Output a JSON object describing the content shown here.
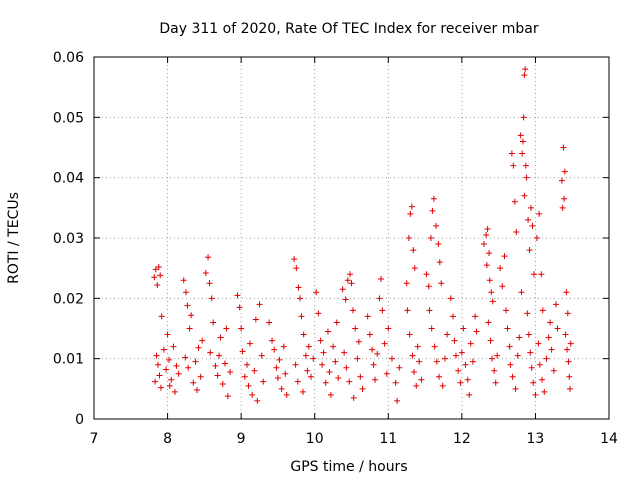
{
  "chart_data": {
    "type": "scatter",
    "title": "Day 311 of 2020, Rate Of TEC Index for receiver mbar",
    "xlabel": "GPS time / hours",
    "ylabel": "ROTI / TECUs",
    "xlim": [
      7,
      14
    ],
    "ylim": [
      0,
      0.06
    ],
    "xticks": [
      "7",
      "8",
      "9",
      "10",
      "11",
      "12",
      "13",
      "14"
    ],
    "yticks": [
      "0",
      "0.01",
      "0.02",
      "0.03",
      "0.04",
      "0.05",
      "0.06"
    ],
    "grid": true,
    "legend": "none",
    "marker": "plus",
    "color": "#e00000",
    "series": [
      {
        "values": [
          [
            7.82,
            0.0235
          ],
          [
            7.84,
            0.0248
          ],
          [
            7.86,
            0.0222
          ],
          [
            7.88,
            0.0252
          ],
          [
            7.9,
            0.0238
          ],
          [
            7.92,
            0.017
          ],
          [
            7.85,
            0.0105
          ],
          [
            7.87,
            0.009
          ],
          [
            7.83,
            0.0062
          ],
          [
            7.89,
            0.0072
          ],
          [
            7.91,
            0.0052
          ],
          [
            7.95,
            0.0115
          ],
          [
            7.98,
            0.0082
          ],
          [
            8.02,
            0.0098
          ],
          [
            8.05,
            0.0065
          ],
          [
            8.08,
            0.012
          ],
          [
            8.1,
            0.0045
          ],
          [
            8.12,
            0.0088
          ],
          [
            8.15,
            0.0075
          ],
          [
            8.0,
            0.014
          ],
          [
            8.03,
            0.0055
          ],
          [
            8.22,
            0.023
          ],
          [
            8.25,
            0.021
          ],
          [
            8.27,
            0.0188
          ],
          [
            8.3,
            0.015
          ],
          [
            8.32,
            0.0172
          ],
          [
            8.24,
            0.0102
          ],
          [
            8.28,
            0.0085
          ],
          [
            8.35,
            0.006
          ],
          [
            8.38,
            0.0095
          ],
          [
            8.42,
            0.0118
          ],
          [
            8.45,
            0.007
          ],
          [
            8.4,
            0.0048
          ],
          [
            8.47,
            0.013
          ],
          [
            8.52,
            0.0242
          ],
          [
            8.55,
            0.0268
          ],
          [
            8.57,
            0.0225
          ],
          [
            8.6,
            0.02
          ],
          [
            8.62,
            0.016
          ],
          [
            8.58,
            0.011
          ],
          [
            8.65,
            0.0088
          ],
          [
            8.68,
            0.0072
          ],
          [
            8.7,
            0.0105
          ],
          [
            8.72,
            0.0135
          ],
          [
            8.75,
            0.0058
          ],
          [
            8.78,
            0.0092
          ],
          [
            8.8,
            0.015
          ],
          [
            8.82,
            0.0038
          ],
          [
            8.85,
            0.0078
          ],
          [
            8.95,
            0.0205
          ],
          [
            8.98,
            0.0185
          ],
          [
            9.0,
            0.015
          ],
          [
            9.02,
            0.0112
          ],
          [
            9.05,
            0.007
          ],
          [
            9.08,
            0.009
          ],
          [
            9.1,
            0.0055
          ],
          [
            9.12,
            0.0125
          ],
          [
            9.15,
            0.004
          ],
          [
            9.18,
            0.008
          ],
          [
            9.2,
            0.0165
          ],
          [
            9.25,
            0.019
          ],
          [
            9.28,
            0.0105
          ],
          [
            9.3,
            0.0062
          ],
          [
            9.22,
            0.003
          ],
          [
            9.38,
            0.016
          ],
          [
            9.42,
            0.013
          ],
          [
            9.45,
            0.0115
          ],
          [
            9.48,
            0.0085
          ],
          [
            9.5,
            0.0068
          ],
          [
            9.52,
            0.0098
          ],
          [
            9.55,
            0.005
          ],
          [
            9.58,
            0.012
          ],
          [
            9.6,
            0.0075
          ],
          [
            9.62,
            0.004
          ],
          [
            9.72,
            0.0265
          ],
          [
            9.75,
            0.025
          ],
          [
            9.78,
            0.0218
          ],
          [
            9.8,
            0.02
          ],
          [
            9.82,
            0.017
          ],
          [
            9.85,
            0.014
          ],
          [
            9.88,
            0.0105
          ],
          [
            9.9,
            0.008
          ],
          [
            9.74,
            0.009
          ],
          [
            9.77,
            0.0062
          ],
          [
            9.84,
            0.0045
          ],
          [
            9.92,
            0.012
          ],
          [
            9.95,
            0.007
          ],
          [
            9.98,
            0.01
          ],
          [
            10.02,
            0.021
          ],
          [
            10.05,
            0.0175
          ],
          [
            10.08,
            0.013
          ],
          [
            10.1,
            0.009
          ],
          [
            10.12,
            0.011
          ],
          [
            10.15,
            0.006
          ],
          [
            10.18,
            0.0145
          ],
          [
            10.2,
            0.0078
          ],
          [
            10.22,
            0.004
          ],
          [
            10.25,
            0.012
          ],
          [
            10.28,
            0.0095
          ],
          [
            10.3,
            0.016
          ],
          [
            10.32,
            0.0068
          ],
          [
            10.38,
            0.0215
          ],
          [
            10.42,
            0.0198
          ],
          [
            10.45,
            0.023
          ],
          [
            10.48,
            0.024
          ],
          [
            10.5,
            0.0225
          ],
          [
            10.52,
            0.018
          ],
          [
            10.55,
            0.015
          ],
          [
            10.4,
            0.011
          ],
          [
            10.43,
            0.0085
          ],
          [
            10.47,
            0.0062
          ],
          [
            10.53,
            0.0035
          ],
          [
            10.58,
            0.01
          ],
          [
            10.6,
            0.0128
          ],
          [
            10.62,
            0.007
          ],
          [
            10.65,
            0.005
          ],
          [
            10.72,
            0.017
          ],
          [
            10.75,
            0.014
          ],
          [
            10.78,
            0.0115
          ],
          [
            10.8,
            0.009
          ],
          [
            10.82,
            0.0065
          ],
          [
            10.85,
            0.0108
          ],
          [
            10.88,
            0.02
          ],
          [
            10.9,
            0.0232
          ],
          [
            10.92,
            0.018
          ],
          [
            10.95,
            0.0125
          ],
          [
            10.98,
            0.0075
          ],
          [
            11.0,
            0.015
          ],
          [
            11.05,
            0.01
          ],
          [
            11.1,
            0.006
          ],
          [
            11.12,
            0.003
          ],
          [
            11.15,
            0.0085
          ],
          [
            11.25,
            0.0225
          ],
          [
            11.28,
            0.03
          ],
          [
            11.3,
            0.034
          ],
          [
            11.32,
            0.0352
          ],
          [
            11.34,
            0.028
          ],
          [
            11.36,
            0.025
          ],
          [
            11.26,
            0.018
          ],
          [
            11.29,
            0.014
          ],
          [
            11.33,
            0.0105
          ],
          [
            11.35,
            0.0078
          ],
          [
            11.38,
            0.0055
          ],
          [
            11.4,
            0.012
          ],
          [
            11.42,
            0.0095
          ],
          [
            11.45,
            0.0065
          ],
          [
            11.52,
            0.024
          ],
          [
            11.55,
            0.022
          ],
          [
            11.58,
            0.03
          ],
          [
            11.6,
            0.0345
          ],
          [
            11.62,
            0.0365
          ],
          [
            11.65,
            0.032
          ],
          [
            11.68,
            0.029
          ],
          [
            11.7,
            0.026
          ],
          [
            11.72,
            0.0225
          ],
          [
            11.56,
            0.018
          ],
          [
            11.59,
            0.015
          ],
          [
            11.63,
            0.012
          ],
          [
            11.66,
            0.0095
          ],
          [
            11.69,
            0.007
          ],
          [
            11.74,
            0.0055
          ],
          [
            11.77,
            0.01
          ],
          [
            11.8,
            0.014
          ],
          [
            11.85,
            0.02
          ],
          [
            11.88,
            0.017
          ],
          [
            11.9,
            0.013
          ],
          [
            11.92,
            0.0105
          ],
          [
            11.95,
            0.008
          ],
          [
            11.98,
            0.006
          ],
          [
            12.0,
            0.011
          ],
          [
            12.02,
            0.015
          ],
          [
            12.05,
            0.009
          ],
          [
            12.08,
            0.0065
          ],
          [
            12.1,
            0.004
          ],
          [
            12.12,
            0.0125
          ],
          [
            12.15,
            0.0095
          ],
          [
            12.18,
            0.017
          ],
          [
            12.2,
            0.0145
          ],
          [
            12.3,
            0.029
          ],
          [
            12.33,
            0.0305
          ],
          [
            12.35,
            0.0315
          ],
          [
            12.37,
            0.0275
          ],
          [
            12.34,
            0.0255
          ],
          [
            12.38,
            0.023
          ],
          [
            12.4,
            0.021
          ],
          [
            12.42,
            0.0195
          ],
          [
            12.36,
            0.016
          ],
          [
            12.39,
            0.013
          ],
          [
            12.41,
            0.01
          ],
          [
            12.44,
            0.008
          ],
          [
            12.46,
            0.006
          ],
          [
            12.48,
            0.0105
          ],
          [
            12.52,
            0.025
          ],
          [
            12.55,
            0.022
          ],
          [
            12.58,
            0.027
          ],
          [
            12.6,
            0.018
          ],
          [
            12.62,
            0.015
          ],
          [
            12.65,
            0.012
          ],
          [
            12.68,
            0.044
          ],
          [
            12.7,
            0.042
          ],
          [
            12.72,
            0.036
          ],
          [
            12.74,
            0.031
          ],
          [
            12.66,
            0.009
          ],
          [
            12.69,
            0.007
          ],
          [
            12.73,
            0.005
          ],
          [
            12.76,
            0.0105
          ],
          [
            12.78,
            0.0135
          ],
          [
            12.8,
            0.047
          ],
          [
            12.82,
            0.044
          ],
          [
            12.84,
            0.05
          ],
          [
            12.85,
            0.057
          ],
          [
            12.86,
            0.058
          ],
          [
            12.83,
            0.046
          ],
          [
            12.87,
            0.042
          ],
          [
            12.88,
            0.04
          ],
          [
            12.9,
            0.033
          ],
          [
            12.92,
            0.028
          ],
          [
            12.85,
            0.037
          ],
          [
            12.94,
            0.035
          ],
          [
            12.96,
            0.032
          ],
          [
            12.98,
            0.024
          ],
          [
            12.81,
            0.021
          ],
          [
            12.89,
            0.0175
          ],
          [
            12.91,
            0.014
          ],
          [
            12.93,
            0.011
          ],
          [
            12.95,
            0.0085
          ],
          [
            12.97,
            0.006
          ],
          [
            13.0,
            0.004
          ],
          [
            13.02,
            0.03
          ],
          [
            13.05,
            0.034
          ],
          [
            13.08,
            0.024
          ],
          [
            13.1,
            0.018
          ],
          [
            13.04,
            0.0125
          ],
          [
            13.06,
            0.009
          ],
          [
            13.09,
            0.0065
          ],
          [
            13.12,
            0.0045
          ],
          [
            13.15,
            0.01
          ],
          [
            13.18,
            0.0135
          ],
          [
            13.2,
            0.016
          ],
          [
            13.22,
            0.0115
          ],
          [
            13.25,
            0.008
          ],
          [
            13.28,
            0.019
          ],
          [
            13.3,
            0.015
          ],
          [
            13.38,
            0.045
          ],
          [
            13.4,
            0.041
          ],
          [
            13.36,
            0.0395
          ],
          [
            13.39,
            0.0365
          ],
          [
            13.37,
            0.035
          ],
          [
            13.42,
            0.021
          ],
          [
            13.44,
            0.0175
          ],
          [
            13.41,
            0.014
          ],
          [
            13.43,
            0.0115
          ],
          [
            13.45,
            0.0095
          ],
          [
            13.46,
            0.007
          ],
          [
            13.47,
            0.005
          ],
          [
            13.48,
            0.0125
          ]
        ]
      }
    ]
  }
}
